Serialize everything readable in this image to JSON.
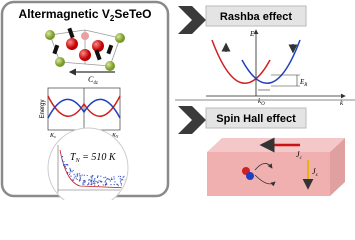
{
  "left_panel": {
    "title_main": "Altermagnetic V",
    "title_sub": "2",
    "title_rest": "SeTeO",
    "rotation_label": {
      "main": "C",
      "sub": "4z"
    },
    "band_plot": {
      "y_label": "Energy",
      "x_left": {
        "main": "K",
        "sub": "x"
      },
      "x_right": {
        "main": "K",
        "sub": "Y"
      }
    },
    "temperature": {
      "main": "T",
      "sub": "N",
      "rest": " = 510 K"
    }
  },
  "rashba": {
    "title": "Rashba effect",
    "y_label": "E",
    "x_label": "k",
    "energy_label": {
      "main": "E",
      "sub": "R"
    },
    "k_label": {
      "main": "k",
      "sub": "O"
    }
  },
  "spin_hall": {
    "title": "Spin Hall effect",
    "charge_current": {
      "main": "J",
      "sub": "c"
    },
    "spin_current": {
      "main": "J",
      "sub": "s"
    }
  }
}
